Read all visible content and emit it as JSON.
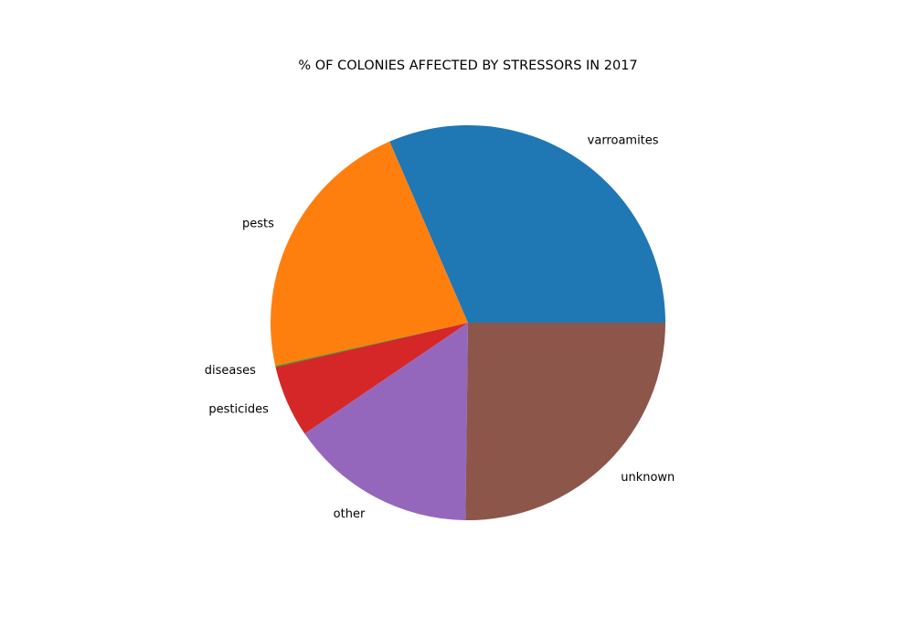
{
  "chart_data": {
    "type": "pie",
    "title": "% OF COLONIES AFFECTED BY STRESSORS IN 2017",
    "categories": [
      "varroamites",
      "pests",
      "diseases",
      "pesticides",
      "other",
      "unknown"
    ],
    "values": [
      31.5,
      22.0,
      0.1,
      5.9,
      15.3,
      25.2
    ],
    "colors": [
      "#1f77b4",
      "#ff7f0e",
      "#2ca02c",
      "#d62728",
      "#9467bd",
      "#8c564b"
    ],
    "start_angle_deg": 0,
    "direction": "counterclockwise",
    "legend": "none"
  }
}
